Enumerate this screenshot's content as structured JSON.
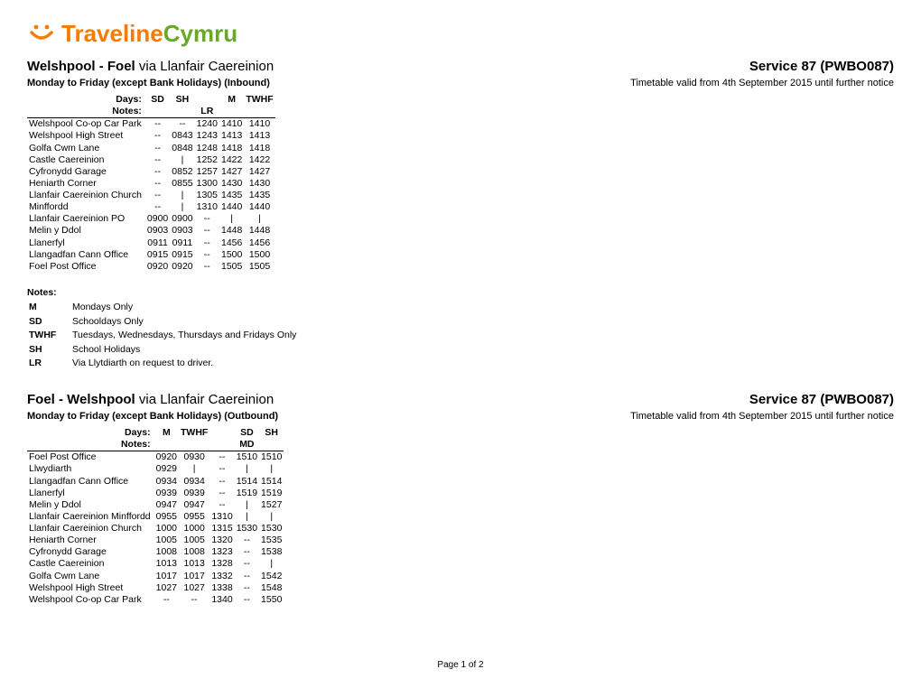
{
  "logo": {
    "part1": "Traveline",
    "part2": "Cymru"
  },
  "pageFooter": "Page 1 of 2",
  "sections": [
    {
      "routeMain": "Welshpool - Foel",
      "routeVia": " via Llanfair Caereinion",
      "serviceCode": "Service 87 (PWBO087)",
      "directionLabel": "Monday to Friday (except Bank Holidays) (Inbound)",
      "validity": "Timetable valid from 4th September 2015 until further notice",
      "daysLabel": "Days:",
      "notesLabel": "Notes:",
      "dayCodes": [
        "SD",
        "SH",
        "",
        "M",
        "TWHF"
      ],
      "noteCodes": [
        "",
        "",
        "LR",
        "",
        ""
      ],
      "stops": [
        {
          "name": "Welshpool Co-op Car Park",
          "times": [
            "--",
            "--",
            "1240",
            "1410",
            "1410"
          ]
        },
        {
          "name": "Welshpool High Street",
          "times": [
            "--",
            "0843",
            "1243",
            "1413",
            "1413"
          ]
        },
        {
          "name": "Golfa Cwm Lane",
          "times": [
            "--",
            "0848",
            "1248",
            "1418",
            "1418"
          ]
        },
        {
          "name": "Castle Caereinion",
          "times": [
            "--",
            "|",
            "1252",
            "1422",
            "1422"
          ]
        },
        {
          "name": "Cyfronydd Garage",
          "times": [
            "--",
            "0852",
            "1257",
            "1427",
            "1427"
          ]
        },
        {
          "name": "Heniarth Corner",
          "times": [
            "--",
            "0855",
            "1300",
            "1430",
            "1430"
          ]
        },
        {
          "name": "Llanfair Caereinion Church",
          "times": [
            "--",
            "|",
            "1305",
            "1435",
            "1435"
          ]
        },
        {
          "name": "Minffordd",
          "times": [
            "--",
            "|",
            "1310",
            "1440",
            "1440"
          ]
        },
        {
          "name": "Llanfair Caereinion PO",
          "times": [
            "0900",
            "0900",
            "--",
            "|",
            "|"
          ]
        },
        {
          "name": "Melin y Ddol",
          "times": [
            "0903",
            "0903",
            "--",
            "1448",
            "1448"
          ]
        },
        {
          "name": "Llanerfyl",
          "times": [
            "0911",
            "0911",
            "--",
            "1456",
            "1456"
          ]
        },
        {
          "name": "Llangadfan Cann Office",
          "times": [
            "0915",
            "0915",
            "--",
            "1500",
            "1500"
          ]
        },
        {
          "name": "Foel Post Office",
          "times": [
            "0920",
            "0920",
            "--",
            "1505",
            "1505"
          ]
        }
      ],
      "notesBlock": {
        "heading": "Notes:",
        "rows": [
          {
            "code": "M",
            "text": "Mondays Only"
          },
          {
            "code": "SD",
            "text": "Schooldays Only"
          },
          {
            "code": "TWHF",
            "text": "Tuesdays, Wednesdays, Thursdays and Fridays Only"
          },
          {
            "code": "SH",
            "text": "School Holidays"
          },
          {
            "code": "LR",
            "text": "Via Llytdiarth on request to driver."
          }
        ]
      }
    },
    {
      "routeMain": "Foel - Welshpool",
      "routeVia": " via Llanfair Caereinion",
      "serviceCode": "Service 87 (PWBO087)",
      "directionLabel": "Monday to Friday (except Bank Holidays) (Outbound)",
      "validity": "Timetable valid from 4th September 2015 until further notice",
      "daysLabel": "Days:",
      "notesLabel": "Notes:",
      "dayCodes": [
        "M",
        "TWHF",
        "",
        "SD",
        "SH"
      ],
      "noteCodes": [
        "",
        "",
        "",
        "MD",
        ""
      ],
      "stops": [
        {
          "name": "Foel Post Office",
          "times": [
            "0920",
            "0930",
            "--",
            "1510",
            "1510"
          ]
        },
        {
          "name": "Llwydiarth",
          "times": [
            "0929",
            "|",
            "--",
            "|",
            "|"
          ]
        },
        {
          "name": "Llangadfan Cann Office",
          "times": [
            "0934",
            "0934",
            "--",
            "1514",
            "1514"
          ]
        },
        {
          "name": "Llanerfyl",
          "times": [
            "0939",
            "0939",
            "--",
            "1519",
            "1519"
          ]
        },
        {
          "name": "Melin y Ddol",
          "times": [
            "0947",
            "0947",
            "--",
            "|",
            "1527"
          ]
        },
        {
          "name": "Llanfair Caereinion Minffordd",
          "times": [
            "0955",
            "0955",
            "1310",
            "|",
            "|"
          ]
        },
        {
          "name": "Llanfair Caereinion Church",
          "times": [
            "1000",
            "1000",
            "1315",
            "1530",
            "1530"
          ]
        },
        {
          "name": "Heniarth Corner",
          "times": [
            "1005",
            "1005",
            "1320",
            "--",
            "1535"
          ]
        },
        {
          "name": "Cyfronydd Garage",
          "times": [
            "1008",
            "1008",
            "1323",
            "--",
            "1538"
          ]
        },
        {
          "name": "Castle Caereinion",
          "times": [
            "1013",
            "1013",
            "1328",
            "--",
            "|"
          ]
        },
        {
          "name": "Golfa Cwm Lane",
          "times": [
            "1017",
            "1017",
            "1332",
            "--",
            "1542"
          ]
        },
        {
          "name": "Welshpool High Street",
          "times": [
            "1027",
            "1027",
            "1338",
            "--",
            "1548"
          ]
        },
        {
          "name": "Welshpool Co-op Car Park",
          "times": [
            "--",
            "--",
            "1340",
            "--",
            "1550"
          ]
        }
      ],
      "notesBlock": null
    }
  ]
}
